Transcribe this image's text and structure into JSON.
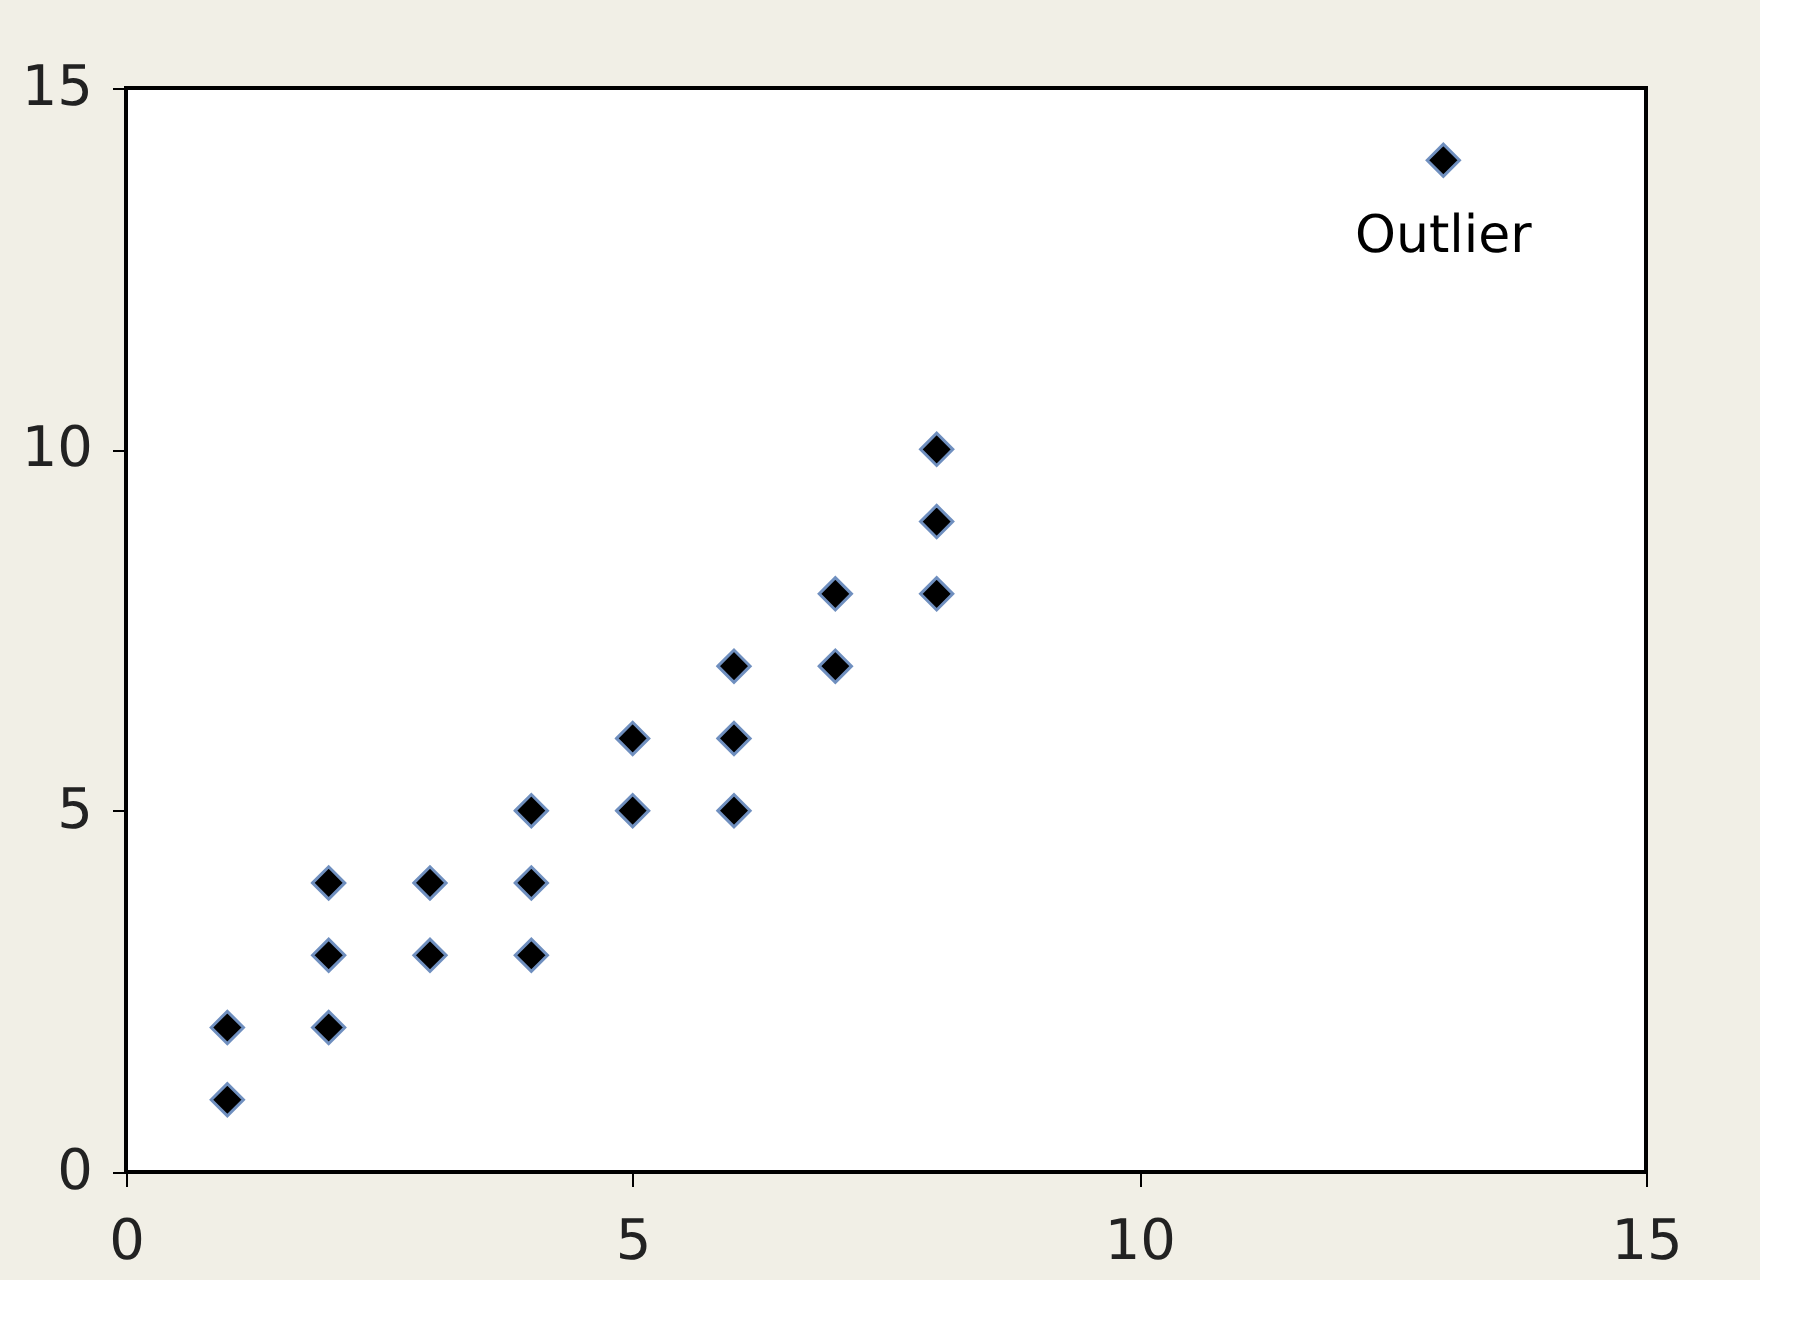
{
  "chart_data": {
    "type": "scatter",
    "x": [
      1,
      1,
      2,
      2,
      2,
      3,
      3,
      4,
      4,
      4,
      5,
      5,
      6,
      6,
      6,
      7,
      7,
      8,
      8,
      8,
      13
    ],
    "values": [
      1,
      2,
      2,
      3,
      4,
      3,
      4,
      3,
      4,
      5,
      5,
      6,
      5,
      6,
      7,
      7,
      8,
      8,
      9,
      10,
      14
    ],
    "color": "#000000",
    "marker": "diamond",
    "xlim": [
      0,
      15
    ],
    "xticks": [
      0,
      5,
      10,
      15
    ],
    "ylim": [
      0,
      15
    ],
    "yticks": [
      0,
      5,
      10,
      15
    ],
    "grid": false,
    "annotations": [
      {
        "text": "Outlier",
        "x": 13,
        "y": 14
      }
    ]
  }
}
